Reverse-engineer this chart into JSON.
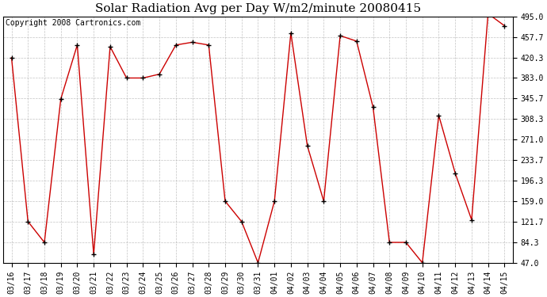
{
  "title": "Solar Radiation Avg per Day W/m2/minute 20080415",
  "copyright": "Copyright 2008 Cartronics.com",
  "line_color": "#cc0000",
  "marker_color": "#000000",
  "background_color": "#ffffff",
  "grid_color": "#aaaaaa",
  "x_labels": [
    "03/16",
    "03/17",
    "03/18",
    "03/19",
    "03/20",
    "03/21",
    "03/22",
    "03/23",
    "03/24",
    "03/25",
    "03/26",
    "03/27",
    "03/28",
    "03/29",
    "03/30",
    "03/31",
    "04/01",
    "04/02",
    "04/03",
    "04/04",
    "04/05",
    "04/06",
    "04/07",
    "04/08",
    "04/09",
    "04/10",
    "04/11",
    "04/12",
    "04/13",
    "04/14",
    "04/15"
  ],
  "y_values": [
    420,
    122,
    84,
    345,
    443,
    62,
    440,
    383,
    383,
    390,
    443,
    448,
    443,
    159,
    122,
    47,
    159,
    465,
    260,
    159,
    460,
    450,
    330,
    84,
    84,
    47,
    315,
    210,
    125,
    500,
    478
  ],
  "y_ticks": [
    47.0,
    84.3,
    121.7,
    159.0,
    196.3,
    233.7,
    271.0,
    308.3,
    345.7,
    383.0,
    420.3,
    457.7,
    495.0
  ],
  "ylim": [
    47.0,
    495.0
  ],
  "title_fontsize": 11,
  "copyright_fontsize": 7,
  "tick_fontsize": 7,
  "figwidth": 6.9,
  "figheight": 3.75,
  "dpi": 100
}
